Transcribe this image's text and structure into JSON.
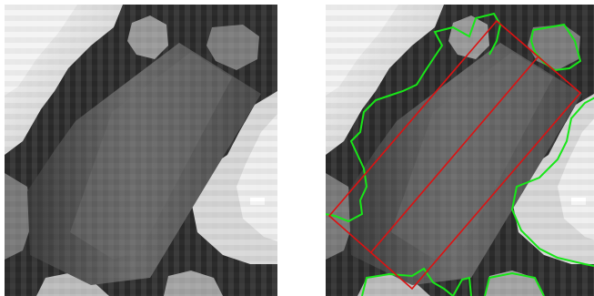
{
  "figure": {
    "panels": [
      {
        "role": "original",
        "shows_overlay": false
      },
      {
        "role": "segmented",
        "shows_overlay": true
      }
    ],
    "colors": {
      "background": "#ffffff",
      "segment_outline": "#19e619",
      "bounding_box": "#dd1111",
      "bright_region": "#e6e6e6",
      "dark_region": "#2a2a2a",
      "object_body": "#5f5f5f"
    }
  }
}
